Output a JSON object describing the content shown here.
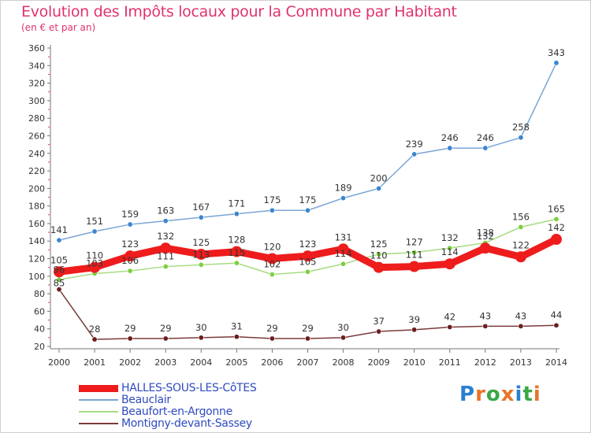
{
  "header": {
    "title": "Evolution des Impôts locaux pour la Commune par Habitant",
    "subtitle": "(en € et par an)"
  },
  "colors": {
    "title": "#e0336b",
    "axis_text": "#333333",
    "grid": "#cccccc",
    "legend_text": "#2f4bbf"
  },
  "logo": {
    "text": "Proxiti",
    "letter_colors": [
      "#2b7fd0",
      "#e8742a",
      "#3aa845",
      "#e8742a",
      "#2b7fd0",
      "#3aa845",
      "#e8742a"
    ]
  },
  "chart_data": {
    "type": "line",
    "title": "Evolution des Impôts locaux pour la Commune par Habitant",
    "subtitle": "(en € et par an)",
    "x": [
      "2000",
      "2001",
      "2002",
      "2003",
      "2004",
      "2005",
      "2006",
      "2007",
      "2008",
      "2009",
      "2010",
      "2011",
      "2012",
      "2013",
      "2014"
    ],
    "ylim": [
      20,
      360
    ],
    "yticks": [
      20,
      40,
      60,
      80,
      100,
      120,
      140,
      160,
      180,
      200,
      220,
      240,
      260,
      280,
      300,
      320,
      340,
      360
    ],
    "grid": false,
    "legend_position": "bottom-left",
    "series": [
      {
        "name": "HALLES-SOUS-LES-CôTES",
        "color": "#ee1c1c",
        "marker_color": "#ee1c1c",
        "emphasis": true,
        "values": [
          105,
          110,
          123,
          132,
          125,
          128,
          120,
          123,
          131,
          110,
          111,
          114,
          132,
          122,
          142
        ],
        "labels": [
          "105",
          "110",
          "123",
          "132",
          "125",
          "128",
          "120",
          "123",
          "131",
          "110",
          "111",
          "114",
          "132",
          "122",
          "142"
        ]
      },
      {
        "name": "Beauclair",
        "color": "#7aa5d6",
        "marker_color": "#3b86cf",
        "emphasis": false,
        "values": [
          141,
          151,
          159,
          163,
          167,
          171,
          175,
          175,
          189,
          200,
          239,
          246,
          246,
          258,
          343
        ],
        "labels": [
          "141",
          "151",
          "159",
          "163",
          "167",
          "171",
          "175",
          "175",
          "189",
          "200",
          "239",
          "246",
          "246",
          "258",
          "343"
        ]
      },
      {
        "name": "Beaufort-en-Argonne",
        "color": "#a6dc82",
        "marker_color": "#7ccf3f",
        "emphasis": false,
        "values": [
          96,
          103,
          106,
          111,
          113,
          115,
          102,
          105,
          114,
          125,
          127,
          132,
          138,
          156,
          165
        ],
        "labels": [
          "96",
          "103",
          "106",
          "111",
          "113",
          "115",
          "102",
          "105",
          "114",
          "125",
          "127",
          "132",
          "138",
          "156",
          "165"
        ]
      },
      {
        "name": "Montigny-devant-Sassey",
        "color": "#7a3a3a",
        "marker_color": "#6b1e1e",
        "emphasis": false,
        "values": [
          85,
          28,
          29,
          29,
          30,
          31,
          29,
          29,
          30,
          37,
          39,
          42,
          43,
          43,
          44
        ],
        "labels": [
          "85",
          "28",
          "29",
          "29",
          "30",
          "31",
          "29",
          "29",
          "30",
          "37",
          "39",
          "42",
          "43",
          "43",
          "44"
        ]
      }
    ]
  }
}
